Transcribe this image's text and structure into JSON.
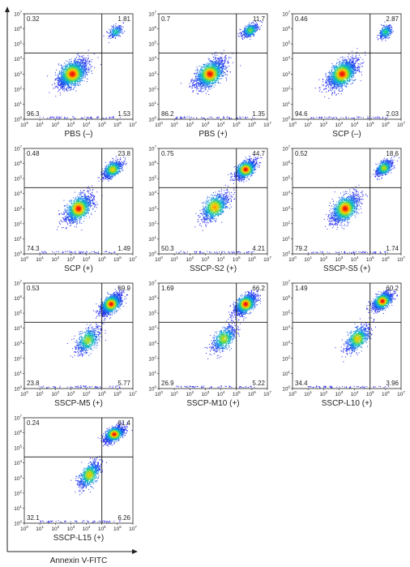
{
  "chart_data": {
    "type": "scatter",
    "x_axis_label": "Annexin V-FITC",
    "y_axis_label": "",
    "x_scale": "log",
    "y_scale": "log",
    "x_ticks": [
      {
        "base": "10",
        "exp": "0"
      },
      {
        "base": "10",
        "exp": "1"
      },
      {
        "base": "10",
        "exp": "2"
      },
      {
        "base": "10",
        "exp": "3"
      },
      {
        "base": "10",
        "exp": "4"
      },
      {
        "base": "10",
        "exp": "5"
      },
      {
        "base": "10",
        "exp": "6"
      },
      {
        "base": "10",
        "exp": "7"
      }
    ],
    "y_ticks": [
      {
        "base": "10",
        "exp": "0"
      },
      {
        "base": "10",
        "exp": "1"
      },
      {
        "base": "10",
        "exp": "2"
      },
      {
        "base": "10",
        "exp": "3"
      },
      {
        "base": "10",
        "exp": "4"
      },
      {
        "base": "10",
        "exp": "5"
      },
      {
        "base": "10",
        "exp": "6"
      },
      {
        "base": "10",
        "exp": "7"
      }
    ],
    "xlim": [
      1,
      10000000
    ],
    "ylim": [
      1,
      10000000
    ],
    "gate": {
      "x": 100000,
      "y": 25000
    },
    "colors": {
      "density_low": "#2a2aff",
      "density_mid": "#13c8c0",
      "density_high": "#ff2010",
      "gate_line": "#111111"
    },
    "panels": [
      {
        "title": "PBS (–)",
        "upper_left": "0.32",
        "upper_right": "1.81",
        "lower_left": "96.3",
        "lower_right": "1.53",
        "populations": [
          {
            "cx": 3.1,
            "cy": 3.0,
            "sx": 0.45,
            "sy": 0.45,
            "rho": 0.55,
            "share": 0.9
          },
          {
            "cx": 5.9,
            "cy": 5.8,
            "sx": 0.22,
            "sy": 0.2,
            "rho": 0.4,
            "share": 0.1
          }
        ]
      },
      {
        "title": "PBS (+)",
        "upper_left": "0.7",
        "upper_right": "11.7",
        "lower_left": "86.2",
        "lower_right": "1.35",
        "populations": [
          {
            "cx": 3.3,
            "cy": 3.0,
            "sx": 0.45,
            "sy": 0.45,
            "rho": 0.55,
            "share": 0.78
          },
          {
            "cx": 5.9,
            "cy": 5.9,
            "sx": 0.25,
            "sy": 0.22,
            "rho": 0.45,
            "share": 0.22
          }
        ]
      },
      {
        "title": "SCP (–)",
        "upper_left": "0.46",
        "upper_right": "2.87",
        "lower_left": "94.6",
        "lower_right": "2.03",
        "populations": [
          {
            "cx": 3.2,
            "cy": 3.0,
            "sx": 0.45,
            "sy": 0.45,
            "rho": 0.55,
            "share": 0.86
          },
          {
            "cx": 6.0,
            "cy": 5.8,
            "sx": 0.22,
            "sy": 0.22,
            "rho": 0.45,
            "share": 0.14
          }
        ]
      },
      {
        "title": "SCP (+)",
        "upper_left": "0.48",
        "upper_right": "23.8",
        "lower_left": "74.3",
        "lower_right": "1.49",
        "populations": [
          {
            "cx": 3.5,
            "cy": 3.0,
            "sx": 0.42,
            "sy": 0.45,
            "rho": 0.55,
            "share": 0.62
          },
          {
            "cx": 5.7,
            "cy": 5.6,
            "sx": 0.3,
            "sy": 0.28,
            "rho": 0.55,
            "share": 0.38
          }
        ]
      },
      {
        "title": "SSCP-S2 (+)",
        "upper_left": "0.75",
        "upper_right": "44.7",
        "lower_left": "50.3",
        "lower_right": "4.21",
        "populations": [
          {
            "cx": 3.6,
            "cy": 3.1,
            "sx": 0.42,
            "sy": 0.45,
            "rho": 0.55,
            "share": 0.45
          },
          {
            "cx": 5.6,
            "cy": 5.6,
            "sx": 0.33,
            "sy": 0.3,
            "rho": 0.55,
            "share": 0.55
          }
        ]
      },
      {
        "title": "SSCP-S5 (+)",
        "upper_left": "0.52",
        "upper_right": "18.6",
        "lower_left": "79.2",
        "lower_right": "1.74",
        "populations": [
          {
            "cx": 3.4,
            "cy": 3.0,
            "sx": 0.42,
            "sy": 0.45,
            "rho": 0.55,
            "share": 0.68
          },
          {
            "cx": 5.9,
            "cy": 5.7,
            "sx": 0.25,
            "sy": 0.25,
            "rho": 0.5,
            "share": 0.32
          }
        ]
      },
      {
        "title": "SSCP-M5 (+)",
        "upper_left": "0.53",
        "upper_right": "69.9",
        "lower_left": "23.8",
        "lower_right": "5.77",
        "populations": [
          {
            "cx": 4.1,
            "cy": 3.2,
            "sx": 0.38,
            "sy": 0.42,
            "rho": 0.6,
            "share": 0.3
          },
          {
            "cx": 5.6,
            "cy": 5.6,
            "sx": 0.32,
            "sy": 0.32,
            "rho": 0.6,
            "share": 0.7
          }
        ]
      },
      {
        "title": "SSCP-M10 (+)",
        "upper_left": "1.69",
        "upper_right": "66.2",
        "lower_left": "26.9",
        "lower_right": "5.22",
        "populations": [
          {
            "cx": 4.2,
            "cy": 3.3,
            "sx": 0.38,
            "sy": 0.42,
            "rho": 0.6,
            "share": 0.32
          },
          {
            "cx": 5.6,
            "cy": 5.6,
            "sx": 0.33,
            "sy": 0.33,
            "rho": 0.6,
            "share": 0.68
          }
        ]
      },
      {
        "title": "SSCP-L10 (+)",
        "upper_left": "1.49",
        "upper_right": "60.2",
        "lower_left": "34.4",
        "lower_right": "3.96",
        "populations": [
          {
            "cx": 4.2,
            "cy": 3.3,
            "sx": 0.38,
            "sy": 0.42,
            "rho": 0.6,
            "share": 0.38
          },
          {
            "cx": 5.8,
            "cy": 5.8,
            "sx": 0.3,
            "sy": 0.28,
            "rho": 0.55,
            "share": 0.62
          }
        ]
      },
      {
        "title": "SSCP-L15 (+)",
        "upper_left": "0.24",
        "upper_right": "61.4",
        "lower_left": "32.1",
        "lower_right": "6.26",
        "populations": [
          {
            "cx": 4.2,
            "cy": 3.2,
            "sx": 0.35,
            "sy": 0.42,
            "rho": 0.6,
            "share": 0.38
          },
          {
            "cx": 5.8,
            "cy": 5.9,
            "sx": 0.3,
            "sy": 0.25,
            "rho": 0.55,
            "share": 0.62
          }
        ]
      }
    ]
  }
}
